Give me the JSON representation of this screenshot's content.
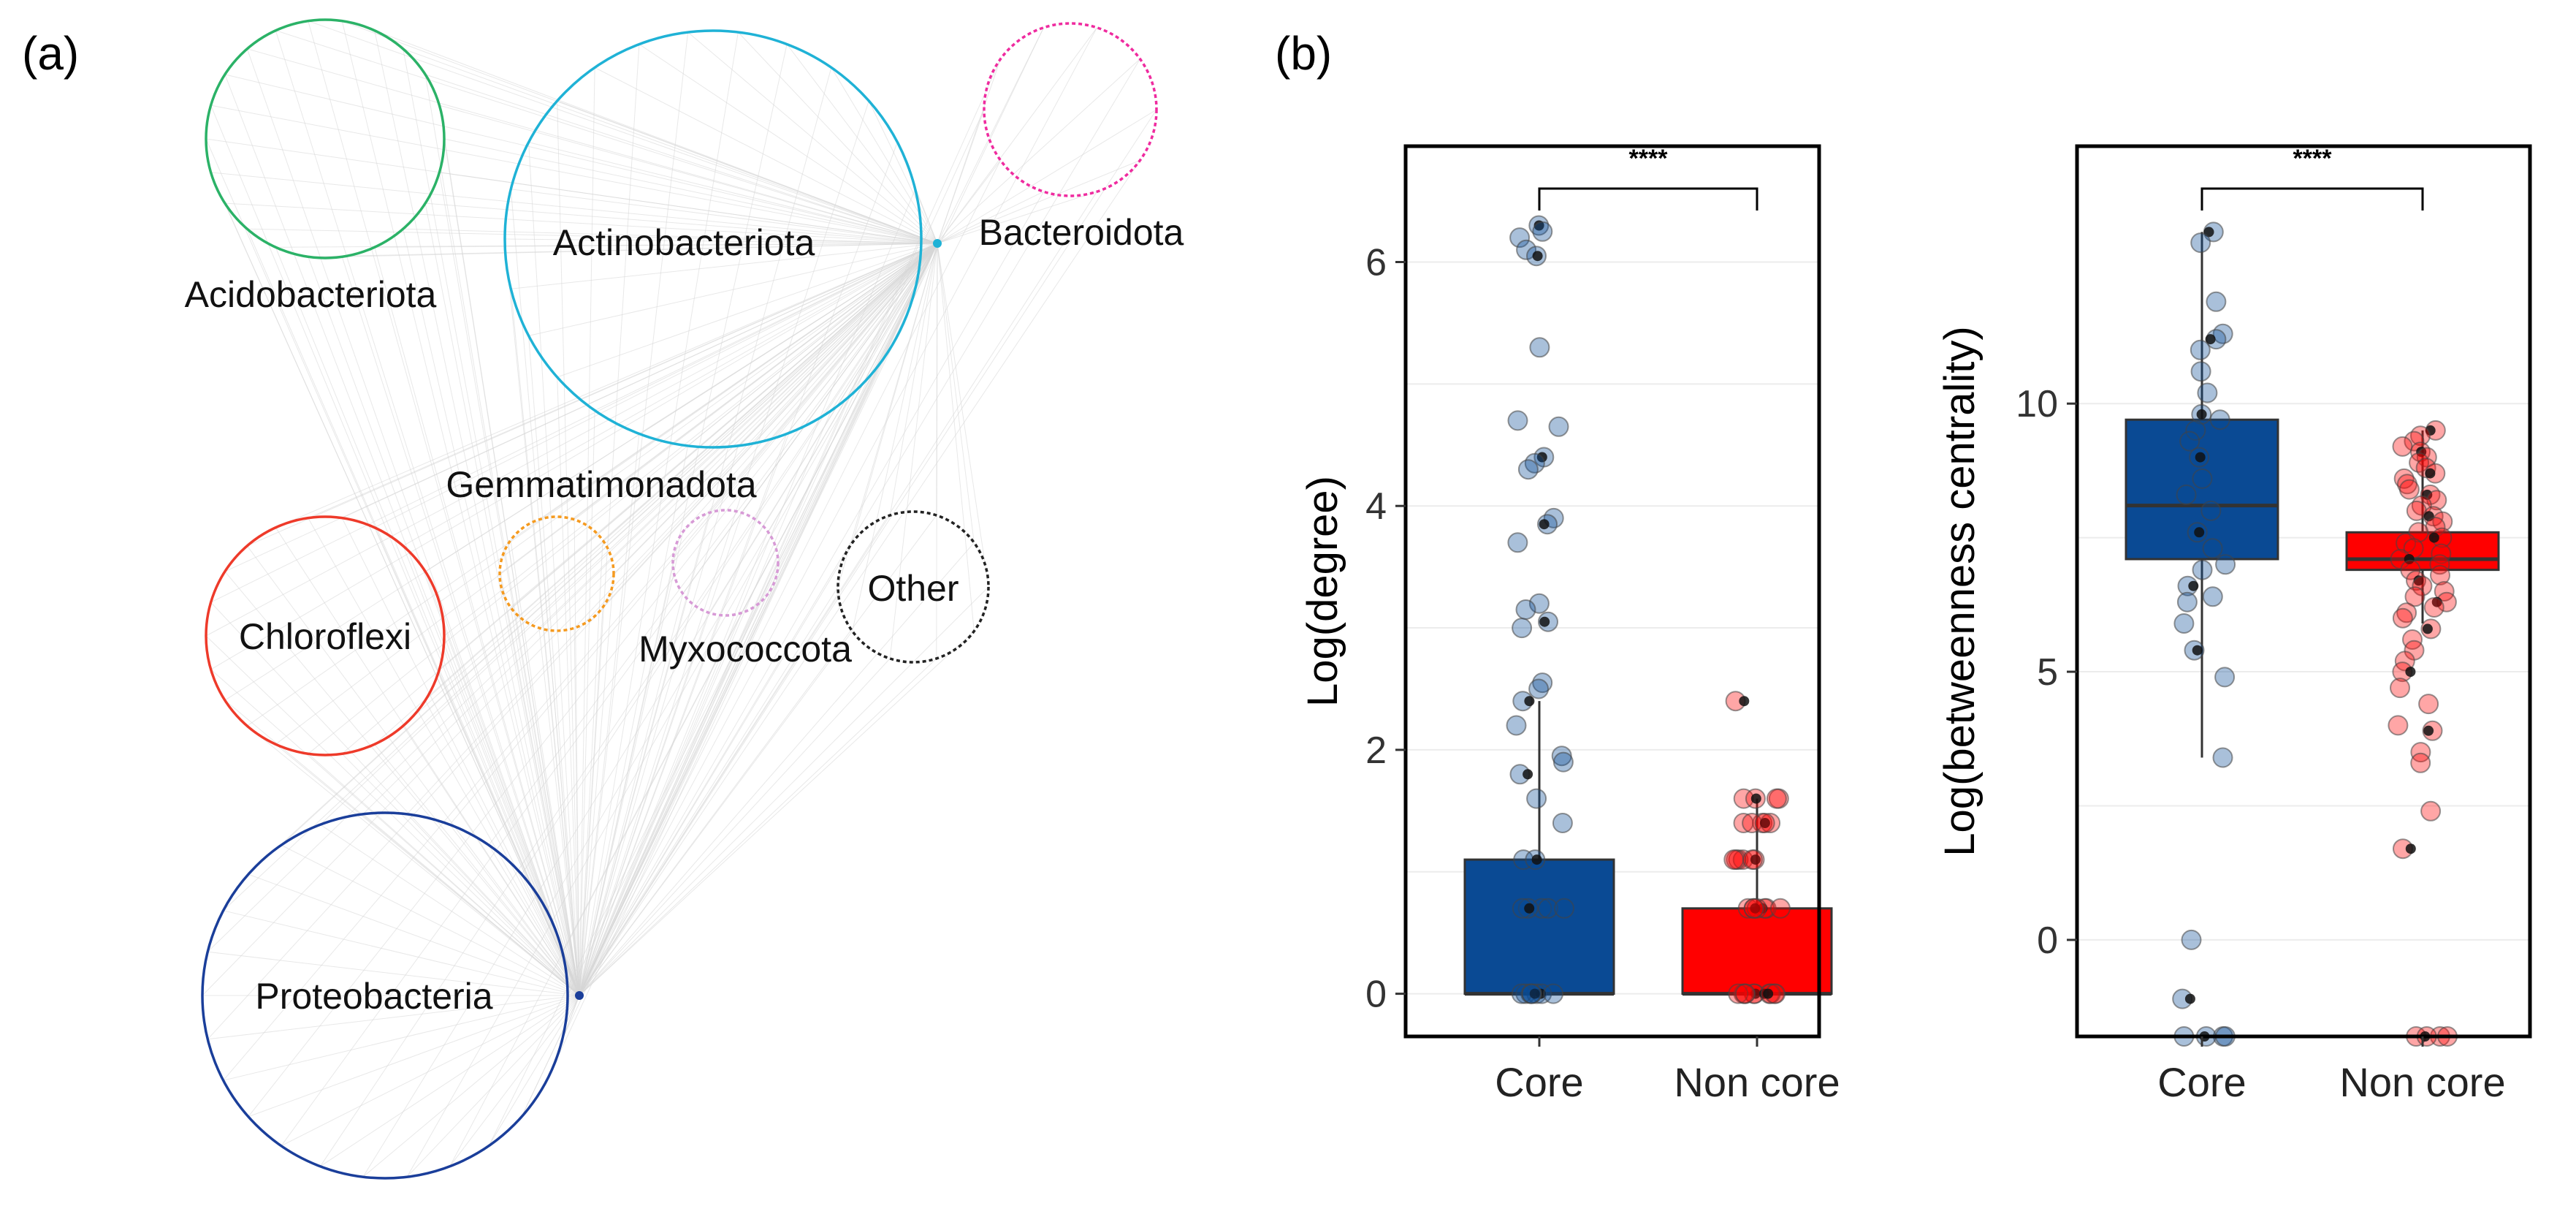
{
  "panel_a": {
    "label": "(a)",
    "nodes": [
      {
        "name": "Acidobacteriota",
        "color": "#2bb267",
        "dotted": false
      },
      {
        "name": "Actinobacteriota",
        "color": "#1fb2d6",
        "dotted": false
      },
      {
        "name": "Bacteroidota",
        "color": "#ef2b9f",
        "dotted": true
      },
      {
        "name": "Gemmatimonadota",
        "color": "#f59a1f",
        "dotted": true
      },
      {
        "name": "Chloroflexi",
        "color": "#ee3a2a",
        "dotted": false
      },
      {
        "name": "Myxococcota",
        "color": "#d79ad6",
        "dotted": true
      },
      {
        "name": "Other",
        "color": "#222222",
        "dotted": true
      },
      {
        "name": "Proteobacteria",
        "color": "#1a3e9a",
        "dotted": false
      }
    ]
  },
  "panel_b": {
    "label": "(b)"
  },
  "chart_data": [
    {
      "type": "box",
      "ylabel": "Log(degree)",
      "xlabel": "",
      "categories": [
        "Core",
        "Non core"
      ],
      "ylim": [
        -0.35,
        6.95
      ],
      "yticks": [
        0,
        2,
        4,
        6
      ],
      "significance": "****",
      "colors": {
        "Core": "#0a4a94",
        "Non core": "#ff0000"
      },
      "boxes": [
        {
          "category": "Core",
          "q1": 0,
          "median": 0,
          "q3": 1.1,
          "whisker_low": 0,
          "whisker_high": 2.4
        },
        {
          "category": "Non core",
          "q1": 0,
          "median": 0,
          "q3": 0.7,
          "whisker_low": 0,
          "whisker_high": 1.6
        }
      ],
      "points": {
        "Core": [
          6.3,
          6.25,
          6.2,
          6.1,
          6.05,
          5.3,
          4.7,
          4.65,
          4.4,
          4.35,
          4.3,
          3.9,
          3.85,
          3.7,
          3.2,
          3.15,
          3.05,
          3.0,
          2.55,
          2.5,
          2.4,
          2.2,
          1.95,
          1.9,
          1.8,
          1.6,
          1.4,
          1.1,
          1.1,
          0.7,
          0.7,
          0.7,
          0.7,
          0.7,
          0,
          0,
          0,
          0,
          0,
          0,
          0,
          0
        ],
        "Non core": [
          2.4,
          1.6,
          1.6,
          1.6,
          1.6,
          1.4,
          1.4,
          1.4,
          1.4,
          1.4,
          1.1,
          1.1,
          1.1,
          1.1,
          1.1,
          1.1,
          0.7,
          0.7,
          0.7,
          0.7,
          0.7,
          0.7,
          0.7,
          0,
          0,
          0,
          0,
          0,
          0,
          0,
          0,
          0,
          0
        ]
      }
    },
    {
      "type": "box",
      "ylabel": "Log(betweenness centrality)",
      "xlabel": "",
      "categories": [
        "Core",
        "Non core"
      ],
      "ylim": [
        -1.8,
        14.8
      ],
      "yticks": [
        0,
        5,
        10
      ],
      "significance": "****",
      "colors": {
        "Core": "#0a4a94",
        "Non core": "#ff0000"
      },
      "boxes": [
        {
          "category": "Core",
          "q1": 7.1,
          "median": 8.1,
          "q3": 9.7,
          "whisker_low": 3.4,
          "whisker_high": 13.2
        },
        {
          "category": "Non core",
          "q1": 6.9,
          "median": 7.1,
          "q3": 7.6,
          "whisker_low": 5.9,
          "whisker_high": 9.5
        }
      ],
      "points": {
        "Core": [
          13.2,
          13.0,
          11.9,
          11.3,
          11.2,
          11.0,
          10.6,
          10.2,
          9.8,
          9.7,
          9.5,
          9.3,
          9.0,
          8.6,
          8.3,
          8.0,
          7.6,
          7.3,
          7.0,
          6.9,
          6.6,
          6.4,
          6.3,
          5.9,
          5.4,
          4.9,
          3.4,
          0.0,
          -1.1,
          -1.8,
          -1.8,
          -1.8,
          -1.8
        ],
        "Non core": [
          9.5,
          9.4,
          9.3,
          9.2,
          9.1,
          9.0,
          8.9,
          8.8,
          8.7,
          8.6,
          8.5,
          8.4,
          8.3,
          8.2,
          8.1,
          8.0,
          7.9,
          7.8,
          7.7,
          7.6,
          7.5,
          7.4,
          7.3,
          7.2,
          7.1,
          7.0,
          6.9,
          6.8,
          6.7,
          6.6,
          6.5,
          6.4,
          6.3,
          6.2,
          6.1,
          6.0,
          5.8,
          5.6,
          5.4,
          5.2,
          5.0,
          4.7,
          4.4,
          4.0,
          3.9,
          3.5,
          3.3,
          2.4,
          1.7,
          -1.8,
          -1.8,
          -1.8,
          -1.8
        ]
      }
    }
  ]
}
